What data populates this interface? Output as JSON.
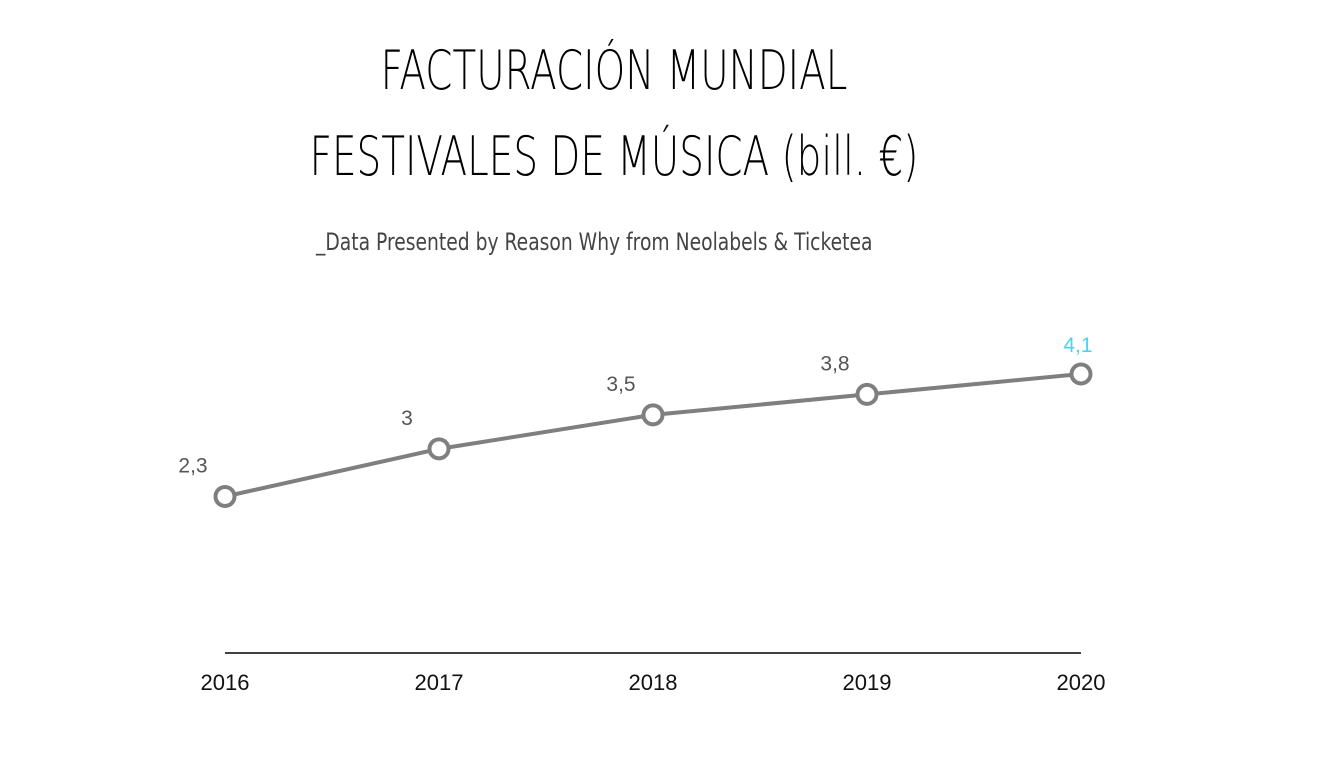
{
  "header": {
    "title_line1": "FACTURACIÓN MUNDIAL",
    "title_line2": "FESTIVALES DE MÚSICA (bill. €)",
    "subtitle": "_Data Presented by Reason Why from Neolabels & Ticketea"
  },
  "chart_data": {
    "type": "line",
    "title": "FACTURACIÓN MUNDIAL FESTIVALES DE MÚSICA (bill. €)",
    "subtitle": "_Data Presented by Reason Why from Neolabels & Ticketea",
    "categories": [
      "2016",
      "2017",
      "2018",
      "2019",
      "2020"
    ],
    "series": [
      {
        "values": [
          2.3,
          3,
          3.5,
          3.8,
          4.1
        ],
        "labels": [
          "2,3",
          "3",
          "3,5",
          "3,8",
          "4,1"
        ]
      }
    ],
    "xlabel": "",
    "ylabel": "",
    "ylim": [
      0,
      4.1
    ],
    "grid": false,
    "legend": "none",
    "y_axis_visible": false,
    "colors": {
      "line": "#7f7f7f",
      "label": "#555555",
      "highlight_label": "#4dd2f0",
      "axis": "#000000"
    }
  }
}
